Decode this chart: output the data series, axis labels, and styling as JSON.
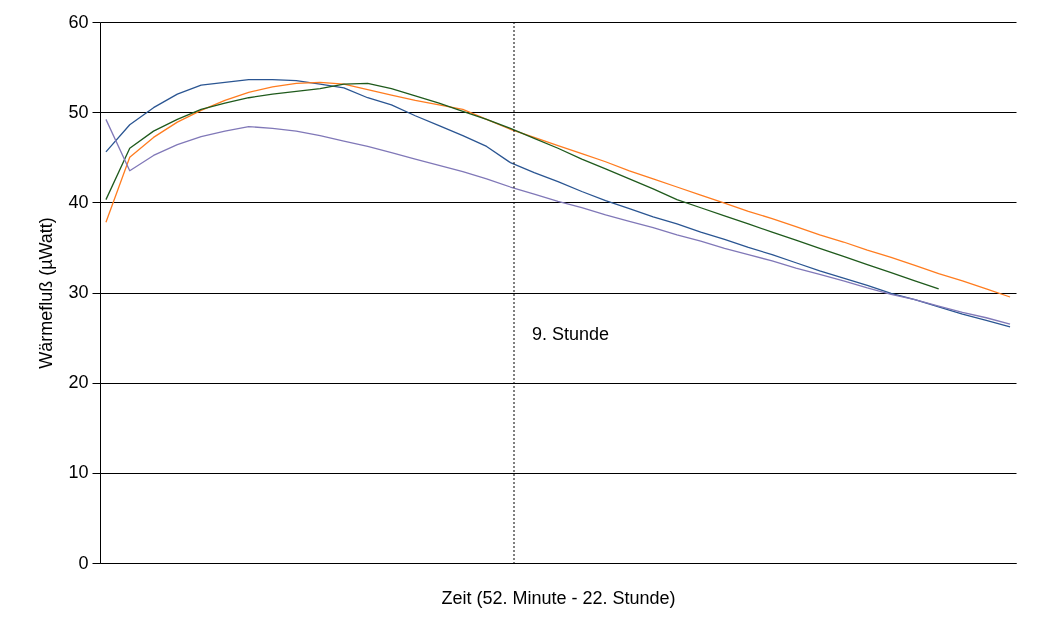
{
  "chart_data": {
    "type": "line",
    "xlabel": "Zeit (52. Minute - 22. Stunde)",
    "ylabel": "Wärmefluß (µWatt)",
    "categories": [
      null,
      null,
      null,
      null,
      null,
      null,
      null,
      null,
      null,
      null,
      null,
      null,
      null,
      null,
      null,
      null,
      null,
      null,
      null,
      null,
      null,
      null,
      null,
      null,
      null,
      null,
      null,
      null,
      null,
      null,
      null,
      null,
      null,
      null,
      null,
      null,
      null,
      null,
      null
    ],
    "ylim": [
      0,
      60
    ],
    "yticks": [
      0,
      10,
      20,
      30,
      40,
      50,
      60
    ],
    "grid": "y",
    "line_style": "solid",
    "marker": "none",
    "annotations": [
      "9. Stunde"
    ],
    "series": [
      {
        "color": "#2a5592",
        "values": [
          45.6,
          48.6,
          50.5,
          52.0,
          53.0,
          53.3,
          53.6,
          53.6,
          53.5,
          53.1,
          52.7,
          51.6,
          50.8,
          49.6,
          48.5,
          47.4,
          46.2,
          44.4,
          43.3,
          42.3,
          41.2,
          40.2,
          39.3,
          38.4,
          37.6,
          36.7,
          35.9,
          35.0,
          34.2,
          33.3,
          32.4,
          31.6,
          30.8,
          29.9,
          29.2,
          28.4,
          27.6,
          26.9,
          26.2
        ]
      },
      {
        "color": "#ff7c1f",
        "values": [
          37.8,
          45.0,
          47.2,
          48.9,
          50.2,
          51.3,
          52.2,
          52.8,
          53.2,
          53.3,
          53.1,
          52.5,
          51.9,
          51.3,
          50.8,
          50.3,
          49.2,
          48.1,
          47.2,
          46.3,
          45.4,
          44.5,
          43.5,
          42.6,
          41.7,
          40.8,
          39.9,
          39.0,
          38.2,
          37.3,
          36.4,
          35.6,
          34.7,
          33.9,
          33.0,
          32.1,
          31.3,
          30.4,
          29.5
        ]
      },
      {
        "color": "#1f5a1c",
        "values": [
          40.3,
          46.0,
          47.9,
          49.2,
          50.3,
          51.0,
          51.6,
          52.0,
          52.3,
          52.6,
          53.1,
          53.2,
          52.6,
          51.8,
          51.0,
          50.1,
          49.2,
          48.2,
          47.1,
          46.0,
          44.8,
          43.7,
          42.6,
          41.5,
          40.3,
          39.4,
          38.5,
          37.6,
          36.7,
          35.8,
          34.9,
          34.0,
          33.1,
          32.2,
          31.3,
          30.4,
          null,
          null,
          null
        ]
      },
      {
        "color": "#8078b8",
        "values": [
          49.2,
          43.5,
          45.2,
          46.4,
          47.3,
          47.9,
          48.4,
          48.2,
          47.9,
          47.4,
          46.8,
          46.2,
          45.5,
          44.8,
          44.1,
          43.4,
          42.6,
          41.7,
          40.9,
          40.1,
          39.4,
          38.6,
          37.9,
          37.2,
          36.4,
          35.7,
          34.9,
          34.2,
          33.5,
          32.7,
          32.0,
          31.3,
          30.5,
          29.8,
          29.2,
          28.5,
          27.8,
          27.2,
          26.5
        ]
      }
    ]
  }
}
